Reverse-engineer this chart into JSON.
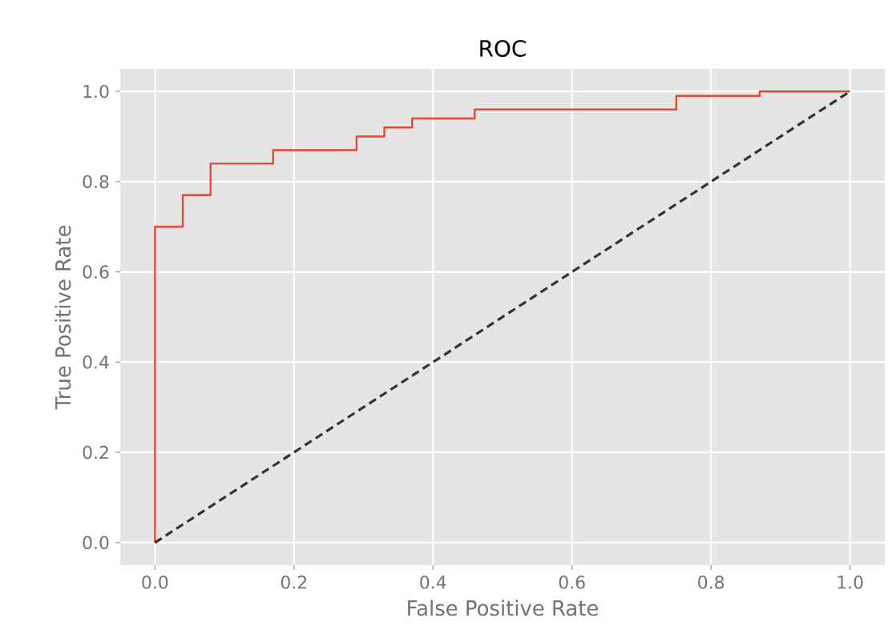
{
  "chart_data": {
    "type": "step",
    "title": "ROC",
    "xlabel": "False Positive Rate",
    "ylabel": "True Positive Rate",
    "series": [
      {
        "color": "#e24a33",
        "x": [
          0,
          0,
          0.04,
          0.08,
          0.17,
          0.29,
          0.33,
          0.37,
          0.46,
          0.75,
          0.87,
          1.0
        ],
        "values": [
          0,
          0.7,
          0.77,
          0.84,
          0.87,
          0.9,
          0.92,
          0.94,
          0.96,
          0.99,
          1.0,
          1.0
        ]
      },
      {
        "type": "line",
        "color": "#333333",
        "line_style": "dashed",
        "x": [
          0,
          1
        ],
        "values": [
          0,
          1
        ]
      }
    ],
    "xlim": [
      -0.05,
      1.05
    ],
    "ylim": [
      -0.05,
      1.05
    ],
    "xticks": [
      {
        "value": 0,
        "label": "0.0"
      },
      {
        "value": 0.2,
        "label": "0.2"
      },
      {
        "value": 0.4,
        "label": "0.4"
      },
      {
        "value": 0.6,
        "label": "0.6"
      },
      {
        "value": 0.8,
        "label": "0.8"
      },
      {
        "value": 1,
        "label": "1.0"
      }
    ],
    "yticks": [
      {
        "value": 0,
        "label": "0.0"
      },
      {
        "value": 0.2,
        "label": "0.2"
      },
      {
        "value": 0.4,
        "label": "0.4"
      },
      {
        "value": 0.6,
        "label": "0.6"
      },
      {
        "value": 0.8,
        "label": "0.8"
      },
      {
        "value": 1,
        "label": "1.0"
      }
    ],
    "grid": true
  }
}
